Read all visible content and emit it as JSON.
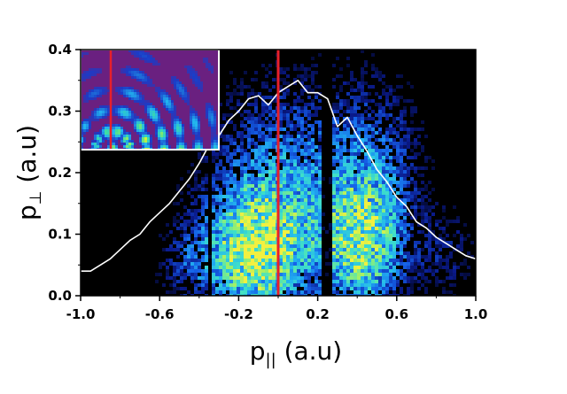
{
  "chart_data": {
    "type": "heatmap",
    "title": "",
    "xlabel": {
      "base": "p",
      "subscript": "||",
      "unit": " (a.u)"
    },
    "ylabel": {
      "base": "p",
      "subscript": "⊥",
      "unit": " (a.u)"
    },
    "xlim": [
      -1.0,
      1.0
    ],
    "ylim": [
      0.0,
      0.4
    ],
    "xticks": [
      -1.0,
      -0.6,
      -0.2,
      0.2,
      0.6,
      1.0
    ],
    "xtick_labels": [
      "-1.0",
      "-0.6",
      "-0.2",
      "0.2",
      "0.6",
      "1.0"
    ],
    "yticks": [
      0.0,
      0.1,
      0.2,
      0.3,
      0.4
    ],
    "ytick_labels": [
      "0.0",
      "0.1",
      "0.2",
      "0.3",
      "0.4"
    ],
    "grid": false,
    "legend": "none",
    "background_color": "#000000",
    "colormap": [
      "#000000",
      "#0a1a8c",
      "#1560e8",
      "#22b4f0",
      "#3fe0c8",
      "#9cf06a",
      "#f2f040"
    ],
    "density_blobs": [
      {
        "x": -0.12,
        "y": 0.07,
        "sx": 0.16,
        "sy": 0.07,
        "w": 1.0
      },
      {
        "x": 0.42,
        "y": 0.08,
        "sx": 0.14,
        "sy": 0.07,
        "w": 0.8
      },
      {
        "x": 0.05,
        "y": 0.18,
        "sx": 0.25,
        "sy": 0.11,
        "w": 0.5
      },
      {
        "x": 0.5,
        "y": 0.2,
        "sx": 0.15,
        "sy": 0.1,
        "w": 0.35
      },
      {
        "x": -0.45,
        "y": 0.05,
        "sx": 0.1,
        "sy": 0.05,
        "w": 0.25
      },
      {
        "x": 0.85,
        "y": 0.07,
        "sx": 0.1,
        "sy": 0.05,
        "w": 0.2
      }
    ],
    "dark_bands": [
      {
        "x_center": 0.25,
        "width": 0.05
      },
      {
        "x_center": -0.34,
        "width": 0.025
      }
    ],
    "series": [
      {
        "type": "line",
        "color": "#ffffff",
        "x": [
          -1.0,
          -0.95,
          -0.9,
          -0.85,
          -0.8,
          -0.75,
          -0.7,
          -0.65,
          -0.6,
          -0.55,
          -0.5,
          -0.45,
          -0.4,
          -0.35,
          -0.3,
          -0.25,
          -0.2,
          -0.15,
          -0.1,
          -0.05,
          0.0,
          0.05,
          0.1,
          0.15,
          0.2,
          0.25,
          0.3,
          0.35,
          0.4,
          0.45,
          0.5,
          0.55,
          0.6,
          0.65,
          0.7,
          0.75,
          0.8,
          0.85,
          0.9,
          0.95,
          1.0
        ],
        "y": [
          0.04,
          0.04,
          0.05,
          0.06,
          0.075,
          0.09,
          0.1,
          0.12,
          0.135,
          0.15,
          0.17,
          0.19,
          0.215,
          0.245,
          0.26,
          0.285,
          0.3,
          0.32,
          0.325,
          0.31,
          0.33,
          0.34,
          0.35,
          0.33,
          0.33,
          0.32,
          0.275,
          0.29,
          0.26,
          0.235,
          0.205,
          0.185,
          0.16,
          0.145,
          0.12,
          0.11,
          0.095,
          0.085,
          0.075,
          0.065,
          0.06
        ]
      },
      {
        "type": "vline",
        "color": "#e8202a",
        "x": 0.0
      }
    ],
    "inset": {
      "type": "heatmap",
      "background_color": "#6a2080",
      "frame_color": "#ffffff",
      "marker_color": "#e8202a",
      "colormap": [
        "#6a2080",
        "#1a3cc8",
        "#22b4f0",
        "#3fe0a0",
        "#c8f040",
        "#f8f020"
      ]
    }
  }
}
